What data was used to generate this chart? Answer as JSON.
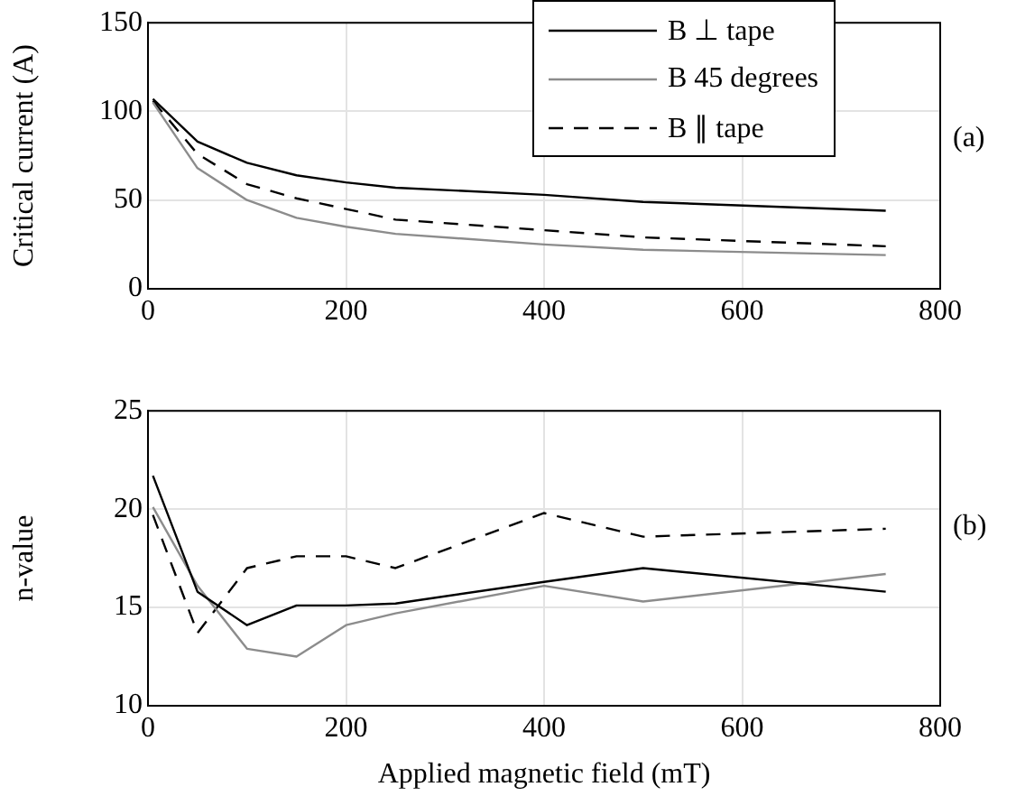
{
  "chart_data": [
    {
      "type": "line",
      "ylabel": "Critical current (A)",
      "x": [
        5,
        50,
        100,
        150,
        200,
        250,
        400,
        500,
        745
      ],
      "xlim": [
        0,
        800
      ],
      "xticks": [
        0,
        200,
        400,
        600,
        800
      ],
      "ylim": [
        0,
        150
      ],
      "yticks": [
        0,
        50,
        100,
        150
      ],
      "grid": true,
      "legend": "top right",
      "marker": "none",
      "annotations": [
        "(a)"
      ],
      "series": [
        {
          "name": "B ⊥ tape",
          "color": "#000000",
          "line_style": "solid",
          "values": [
            107,
            83,
            71,
            64,
            60,
            57,
            53,
            49,
            44
          ]
        },
        {
          "name": "B 45 degrees",
          "color": "#8c8c8c",
          "line_style": "solid",
          "values": [
            105,
            68,
            50,
            40,
            35,
            31,
            25,
            22,
            19
          ]
        },
        {
          "name": "B ∥ tape",
          "color": "#000000",
          "line_style": "dashed",
          "values": [
            106,
            76,
            59,
            51,
            45,
            39,
            33,
            29,
            24
          ]
        }
      ]
    },
    {
      "type": "line",
      "xlabel": "Applied magnetic field (mT)",
      "ylabel": "n-value",
      "x": [
        5,
        50,
        100,
        150,
        200,
        250,
        400,
        500,
        745
      ],
      "xlim": [
        0,
        800
      ],
      "xticks": [
        0,
        200,
        400,
        600,
        800
      ],
      "ylim": [
        10,
        25
      ],
      "yticks": [
        10,
        15,
        20,
        25
      ],
      "grid": true,
      "marker": "none",
      "annotations": [
        "(b)"
      ],
      "series": [
        {
          "color": "#000000",
          "line_style": "solid",
          "values": [
            21.7,
            15.8,
            14.1,
            15.1,
            15.1,
            15.2,
            16.3,
            17.0,
            15.8
          ]
        },
        {
          "color": "#8c8c8c",
          "line_style": "solid",
          "values": [
            20.1,
            16.1,
            12.9,
            12.5,
            14.1,
            14.7,
            16.1,
            15.3,
            16.7
          ]
        },
        {
          "color": "#000000",
          "line_style": "dashed",
          "values": [
            19.7,
            13.7,
            17.0,
            17.6,
            17.6,
            17.0,
            19.8,
            18.6,
            19.0
          ]
        }
      ]
    }
  ]
}
